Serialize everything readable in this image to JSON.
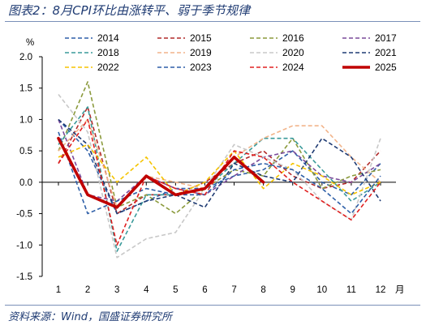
{
  "title": "图表2：8月CPI环比由涨转平、弱于季节规律",
  "source": "资料来源：Wind，国盛证券研究所",
  "chart_data": {
    "type": "line",
    "ylabel": "%",
    "xlabel": "月",
    "ylim": [
      -1.5,
      2.0
    ],
    "yticks": [
      "2.0",
      "1.5",
      "1.0",
      "0.5",
      "0.0",
      "-0.5",
      "-1.0",
      "-1.5"
    ],
    "ytick_values": [
      2.0,
      1.5,
      1.0,
      0.5,
      0.0,
      -0.5,
      -1.0,
      -1.5
    ],
    "x": [
      1,
      2,
      3,
      4,
      5,
      6,
      7,
      8,
      9,
      10,
      11,
      12
    ],
    "xticks": [
      "1",
      "2",
      "3",
      "4",
      "5",
      "6",
      "7",
      "8",
      "9",
      "10",
      "11",
      "12"
    ],
    "grid": false,
    "legend_position": "top",
    "series": [
      {
        "name": "2014",
        "color": "#2e5fa8",
        "dash": "dashed",
        "values": [
          1.0,
          0.5,
          -0.5,
          -0.3,
          -0.1,
          -0.1,
          0.1,
          0.2,
          0.5,
          0.0,
          -0.2,
          0.3
        ]
      },
      {
        "name": "2015",
        "color": "#b22a2a",
        "dash": "dashed",
        "values": [
          0.3,
          1.2,
          -0.5,
          -0.2,
          -0.2,
          0.0,
          0.3,
          0.5,
          0.1,
          -0.1,
          0.0,
          0.5
        ]
      },
      {
        "name": "2016",
        "color": "#8b9a3c",
        "dash": "dashed",
        "values": [
          0.5,
          1.6,
          -0.4,
          -0.2,
          -0.5,
          -0.1,
          0.2,
          0.1,
          0.7,
          -0.1,
          0.1,
          0.2
        ]
      },
      {
        "name": "2017",
        "color": "#7a4a9a",
        "dash": "dashed",
        "values": [
          1.0,
          -0.2,
          -0.3,
          0.1,
          -0.1,
          -0.2,
          0.1,
          0.4,
          0.5,
          0.1,
          0.0,
          0.3
        ]
      },
      {
        "name": "2018",
        "color": "#3a9a9a",
        "dash": "dashed",
        "values": [
          0.6,
          1.2,
          -1.1,
          -0.2,
          -0.2,
          -0.1,
          0.3,
          0.7,
          0.7,
          0.2,
          -0.3,
          0.0
        ]
      },
      {
        "name": "2019",
        "color": "#f2b48a",
        "dash": "dashed",
        "values": [
          0.5,
          1.0,
          -0.4,
          0.1,
          0.0,
          -0.1,
          0.4,
          0.7,
          0.9,
          0.9,
          0.4,
          0.0
        ]
      },
      {
        "name": "2020",
        "color": "#c8c8c8",
        "dash": "dashed",
        "values": [
          1.4,
          0.8,
          -1.2,
          -0.9,
          -0.8,
          -0.1,
          0.6,
          0.4,
          0.2,
          -0.3,
          -0.6,
          0.7
        ]
      },
      {
        "name": "2021",
        "color": "#1f3b73",
        "dash": "dashed",
        "values": [
          1.0,
          0.6,
          -0.5,
          -0.3,
          -0.2,
          -0.4,
          0.3,
          0.1,
          0.0,
          0.7,
          0.4,
          -0.3
        ]
      },
      {
        "name": "2022",
        "color": "#f5c400",
        "dash": "dashed",
        "values": [
          0.4,
          0.6,
          0.0,
          0.4,
          -0.2,
          0.0,
          0.5,
          -0.1,
          0.3,
          0.1,
          -0.2,
          0.0
        ]
      },
      {
        "name": "2023",
        "color": "#2e5fa8",
        "dash": "dashed",
        "values": [
          0.8,
          -0.5,
          -0.3,
          -0.1,
          -0.2,
          -0.2,
          0.2,
          0.3,
          0.2,
          -0.1,
          -0.5,
          0.1
        ]
      },
      {
        "name": "2024",
        "color": "#e02020",
        "dash": "dashed",
        "values": [
          0.3,
          1.0,
          -1.0,
          0.1,
          -0.1,
          -0.2,
          0.5,
          0.4,
          0.0,
          -0.3,
          -0.6,
          0.0
        ]
      },
      {
        "name": "2025",
        "color": "#c00000",
        "dash": "solid",
        "values": [
          0.7,
          -0.2,
          -0.4,
          0.1,
          -0.2,
          -0.1,
          0.4,
          0.0,
          null,
          null,
          null,
          null
        ]
      }
    ]
  }
}
